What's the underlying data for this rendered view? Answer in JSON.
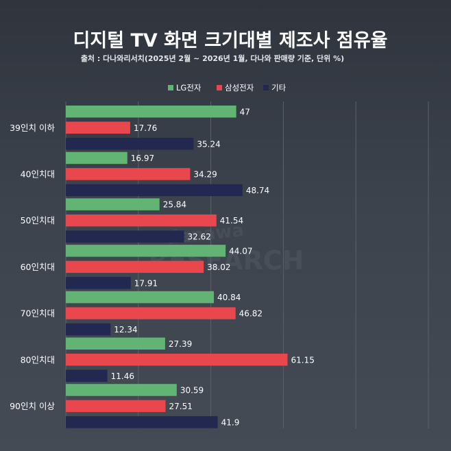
{
  "chart_data": {
    "type": "bar",
    "orientation": "horizontal",
    "title": "디지털 TV 화면 크기대별 제조사 점유율",
    "subtitle": "출처 : 다나와리서치(2025년 2월 ~ 2026년 1월, 다나와 판매량 기준, 단위 %)",
    "categories": [
      "39인치 이하",
      "40인치대",
      "50인치대",
      "60인치대",
      "70인치대",
      "80인치대",
      "90인치 이상"
    ],
    "series": [
      {
        "name": "LG전자",
        "color": "#62b474",
        "values": [
          47,
          16.97,
          25.84,
          44.07,
          40.84,
          27.39,
          30.59
        ]
      },
      {
        "name": "삼성전자",
        "color": "#e8474d",
        "values": [
          17.76,
          34.29,
          41.54,
          38.02,
          46.82,
          61.15,
          27.51
        ]
      },
      {
        "name": "기타",
        "color": "#232850",
        "values": [
          35.24,
          48.74,
          32.62,
          17.91,
          12.34,
          11.46,
          41.9
        ]
      }
    ],
    "xlim": [
      0,
      100
    ],
    "grid": true,
    "legend_position": "top-center",
    "watermark": [
      "danawa",
      "RESEARCH"
    ]
  }
}
